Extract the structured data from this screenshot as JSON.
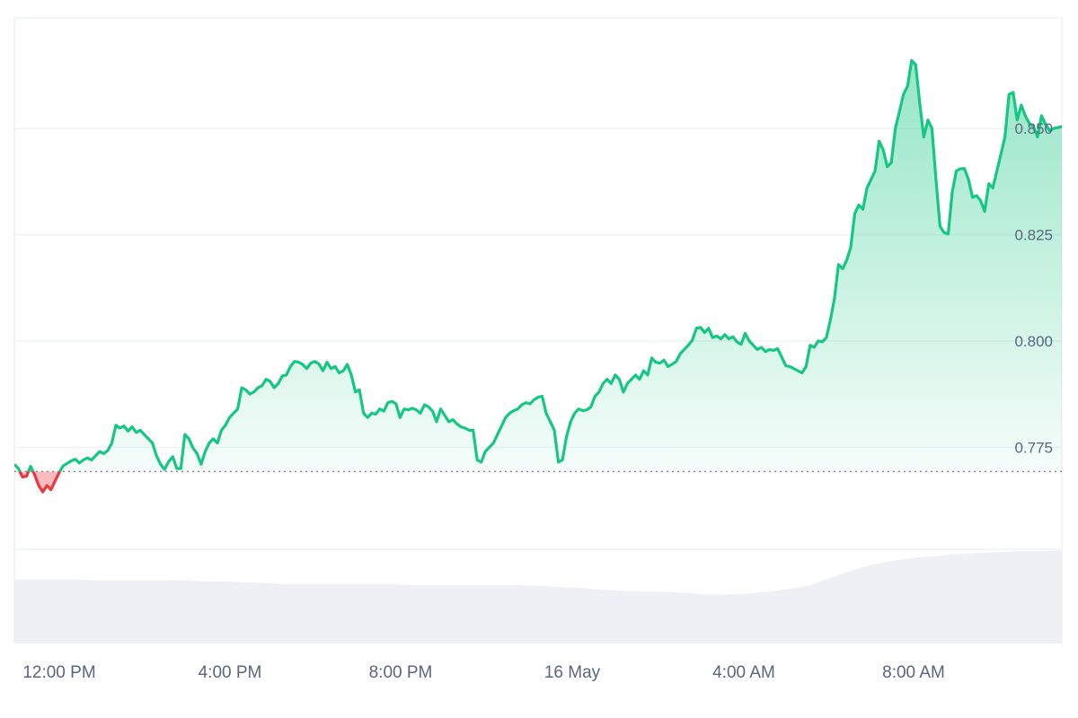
{
  "colors": {
    "up": "#16c784",
    "down": "#ea3943",
    "grid": "#eff2f5",
    "axis_text": "#58667e",
    "volume": "#eef0f5",
    "baseline": "#808a9d"
  },
  "chart_data": {
    "type": "area",
    "title": "",
    "xlabel": "",
    "ylabel": "",
    "x_tick_labels": [
      "12:00 PM",
      "4:00 PM",
      "8:00 PM",
      "16 May",
      "4:00 AM",
      "8:00 AM"
    ],
    "y_tick_labels": [
      "0.850",
      "0.825",
      "0.800",
      "0.775"
    ],
    "y_ticks": [
      0.85,
      0.825,
      0.8,
      0.775
    ],
    "ylim": [
      0.751,
      0.876
    ],
    "baseline": 0.7693,
    "series": [
      {
        "values": [
          0.771,
          0.77,
          0.768,
          0.7682,
          0.7705,
          0.7685,
          0.766,
          0.7645,
          0.766,
          0.765,
          0.767,
          0.769,
          0.7706,
          0.7712,
          0.7718,
          0.7722,
          0.7713,
          0.772,
          0.7725,
          0.772,
          0.773,
          0.774,
          0.7735,
          0.7742,
          0.776,
          0.7802,
          0.7795,
          0.78,
          0.7788,
          0.7798,
          0.7785,
          0.779,
          0.778,
          0.777,
          0.776,
          0.773,
          0.771,
          0.7698,
          0.7716,
          0.7728,
          0.77,
          0.77,
          0.778,
          0.777,
          0.7748,
          0.7735,
          0.771,
          0.774,
          0.776,
          0.777,
          0.776,
          0.779,
          0.7802,
          0.782,
          0.783,
          0.784,
          0.789,
          0.7885,
          0.7875,
          0.788,
          0.789,
          0.7895,
          0.791,
          0.7905,
          0.789,
          0.79,
          0.7918,
          0.792,
          0.794,
          0.7952,
          0.795,
          0.7945,
          0.7935,
          0.7948,
          0.7952,
          0.7946,
          0.793,
          0.795,
          0.7935,
          0.794,
          0.7925,
          0.793,
          0.7945,
          0.792,
          0.788,
          0.7885,
          0.783,
          0.782,
          0.783,
          0.7828,
          0.784,
          0.7835,
          0.7855,
          0.7858,
          0.7852,
          0.782,
          0.784,
          0.7838,
          0.7842,
          0.7838,
          0.783,
          0.785,
          0.7845,
          0.7835,
          0.781,
          0.784,
          0.7825,
          0.781,
          0.7815,
          0.7805,
          0.7798,
          0.7795,
          0.779,
          0.779,
          0.772,
          0.7715,
          0.774,
          0.775,
          0.776,
          0.778,
          0.78,
          0.782,
          0.783,
          0.7836,
          0.784,
          0.785,
          0.7855,
          0.7852,
          0.7862,
          0.7868,
          0.787,
          0.783,
          0.781,
          0.779,
          0.7715,
          0.772,
          0.7775,
          0.781,
          0.783,
          0.784,
          0.7836,
          0.7838,
          0.7845,
          0.787,
          0.788,
          0.79,
          0.791,
          0.79,
          0.792,
          0.791,
          0.788,
          0.79,
          0.791,
          0.792,
          0.791,
          0.793,
          0.792,
          0.796,
          0.795,
          0.7948,
          0.7955,
          0.794,
          0.7945,
          0.7952,
          0.797,
          0.798,
          0.799,
          0.8002,
          0.803,
          0.8032,
          0.802,
          0.803,
          0.8008,
          0.8012,
          0.8005,
          0.8015,
          0.8005,
          0.801,
          0.7998,
          0.7992,
          0.8018,
          0.8,
          0.799,
          0.798,
          0.7985,
          0.7975,
          0.798,
          0.7978,
          0.7982,
          0.7962,
          0.7942,
          0.794,
          0.7935,
          0.793,
          0.7925,
          0.794,
          0.799,
          0.7985,
          0.8,
          0.7998,
          0.8008,
          0.805,
          0.81,
          0.818,
          0.817,
          0.819,
          0.822,
          0.83,
          0.832,
          0.831,
          0.836,
          0.838,
          0.84,
          0.847,
          0.845,
          0.841,
          0.842,
          0.85,
          0.854,
          0.858,
          0.86,
          0.866,
          0.865,
          0.856,
          0.848,
          0.852,
          0.85,
          0.838,
          0.827,
          0.8255,
          0.8252,
          0.835,
          0.84,
          0.8405,
          0.8406,
          0.838,
          0.8338,
          0.8342,
          0.833,
          0.8305,
          0.837,
          0.836,
          0.84,
          0.844,
          0.848,
          0.858,
          0.8585,
          0.852,
          0.8555,
          0.853,
          0.8512,
          0.8505,
          0.848,
          0.853,
          0.851,
          0.8495,
          0.85,
          0.8502,
          0.8505
        ]
      }
    ],
    "volume": {
      "values": [
        0.68,
        0.68,
        0.68,
        0.68,
        0.67,
        0.67,
        0.67,
        0.67,
        0.67,
        0.66,
        0.66,
        0.65,
        0.64,
        0.63,
        0.63,
        0.63,
        0.63,
        0.63,
        0.63,
        0.62,
        0.62,
        0.62,
        0.62,
        0.62,
        0.62,
        0.61,
        0.6,
        0.59,
        0.57,
        0.56,
        0.55,
        0.55,
        0.54,
        0.52,
        0.52,
        0.53,
        0.55,
        0.58,
        0.62,
        0.7,
        0.78,
        0.84,
        0.88,
        0.91,
        0.93,
        0.95,
        0.96,
        0.97,
        0.98,
        0.98,
        0.99
      ]
    }
  }
}
